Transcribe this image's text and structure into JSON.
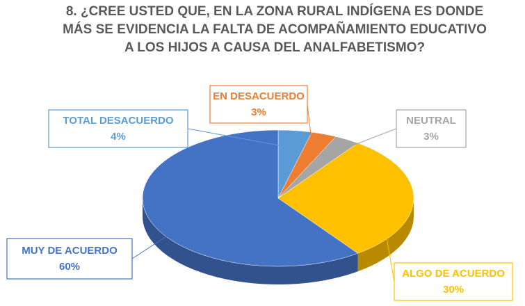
{
  "chart_data": {
    "type": "pie",
    "title": "8. ¿CREE USTED QUE, EN LA ZONA RURAL INDÍGENA ES DONDE MÁS SE EVIDENCIA LA FALTA DE ACOMPAÑAMIENTO EDUCATIVO A LOS HIJOS A CAUSA DEL ANALFABETISMO?",
    "categories": [
      "TOTAL DESACUERDO",
      "EN DESACUERDO",
      "NEUTRAL",
      "ALGO DE ACUERDO",
      "MUY DE ACUERDO"
    ],
    "values": [
      4,
      3,
      3,
      30,
      60
    ],
    "value_labels": [
      "4%",
      "3%",
      "3%",
      "30%",
      "60%"
    ],
    "colors": [
      "#5b9bd5",
      "#ed7d31",
      "#a5a5a5",
      "#ffc000",
      "#4472c4"
    ]
  }
}
